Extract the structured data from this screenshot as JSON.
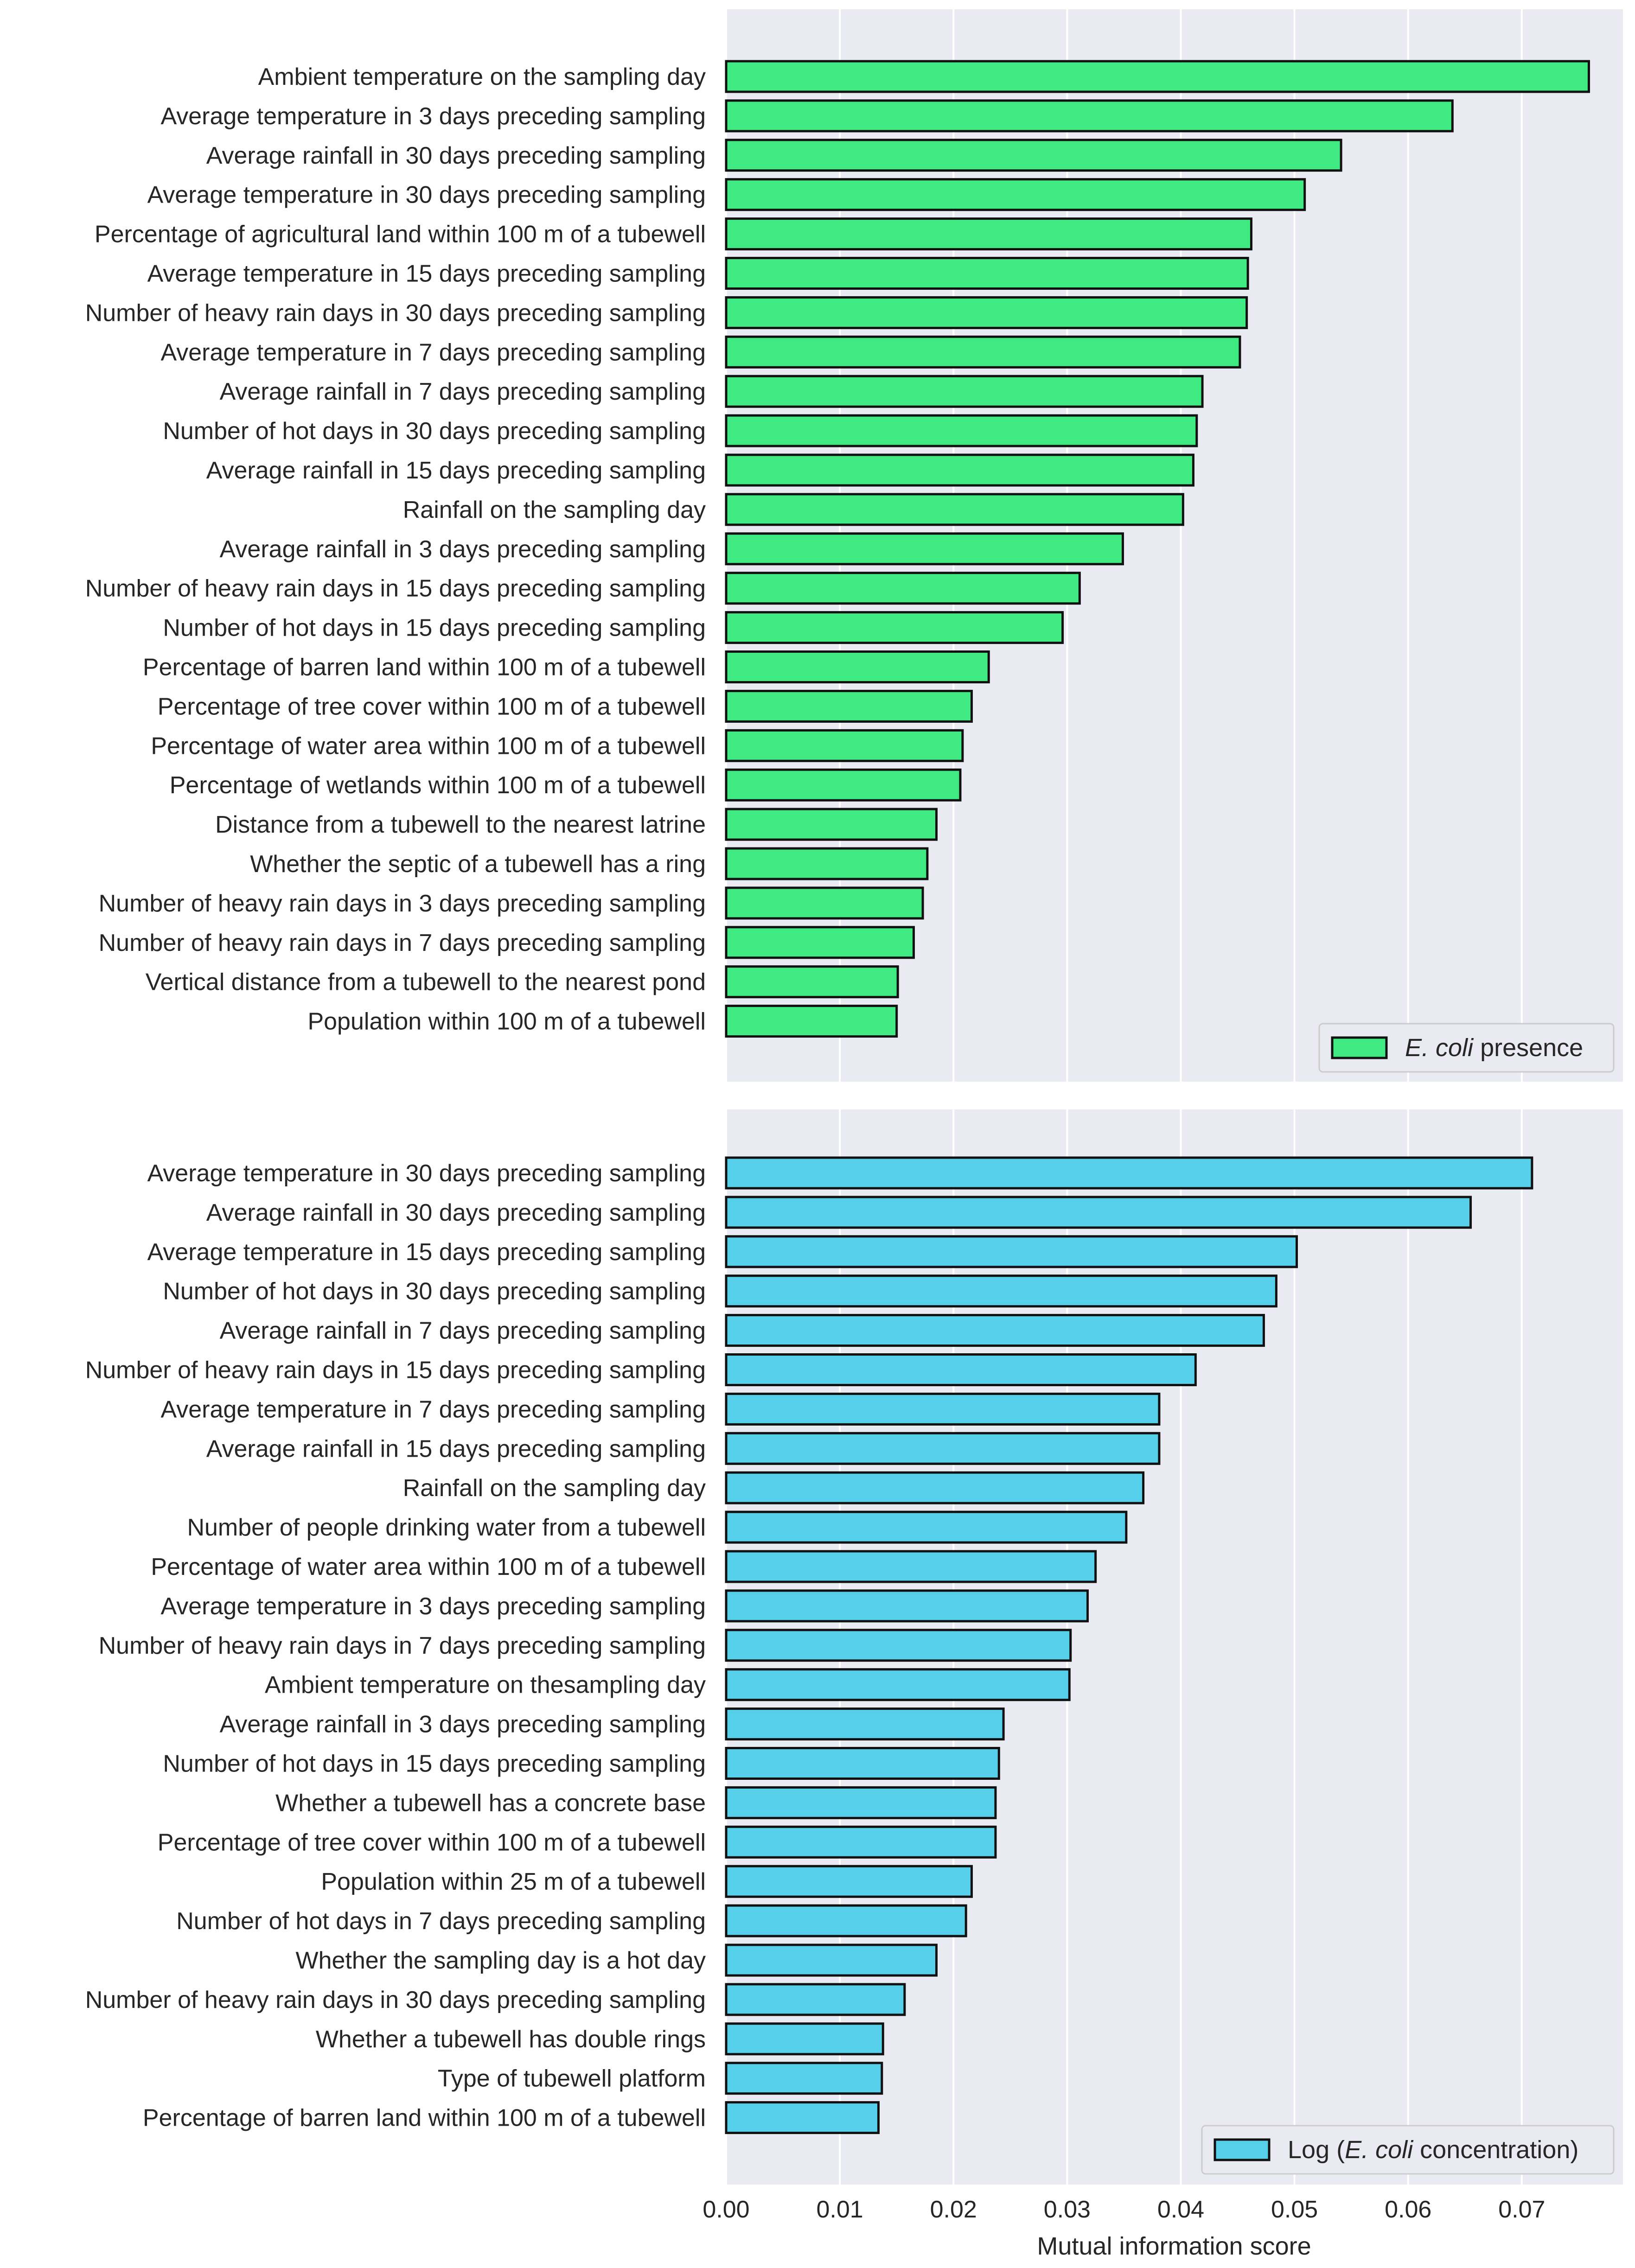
{
  "chart_data": [
    {
      "type": "bar",
      "orientation": "horizontal",
      "legend": {
        "prefix": "",
        "italic": "E. coli",
        "suffix": " presence",
        "position": "bottom-right"
      },
      "bar_color": "#3fea83",
      "categories": [
        "Ambient temperature on the sampling day",
        "Average temperature in 3 days preceding sampling",
        "Average rainfall in 30 days preceding sampling",
        "Average temperature in 30 days preceding sampling",
        "Percentage of agricultural land within 100 m of a tubewell",
        "Average temperature in 15 days preceding sampling",
        "Number of heavy rain days in 30 days preceding sampling",
        "Average temperature in 7 days preceding sampling",
        "Average rainfall in 7 days preceding sampling",
        "Number of hot days in 30 days preceding sampling",
        "Average rainfall in 15 days preceding sampling",
        "Rainfall on the sampling day",
        "Average rainfall in 3 days preceding sampling",
        "Number of heavy rain days in 15 days preceding sampling",
        "Number of hot days in 15 days preceding sampling",
        "Percentage of barren land within 100 m of a tubewell",
        "Percentage of tree cover within 100 m of a tubewell",
        "Percentage of water area within 100 m of a tubewell",
        "Percentage of wetlands within 100 m of a tubewell",
        "Distance from a tubewell to the nearest latrine",
        "Whether the septic of a tubewell has a ring",
        "Number of heavy rain days in 3 days preceding sampling",
        "Number of heavy rain days in 7 days preceding sampling",
        "Vertical distance from a tubewell to the nearest pond",
        "Population within 100 m of a tubewell"
      ],
      "values": [
        0.0759,
        0.0639,
        0.0541,
        0.0509,
        0.0462,
        0.0459,
        0.0458,
        0.0452,
        0.0419,
        0.0414,
        0.0411,
        0.0402,
        0.0349,
        0.0311,
        0.0296,
        0.0231,
        0.0216,
        0.0208,
        0.0206,
        0.0185,
        0.0177,
        0.0173,
        0.0165,
        0.0151,
        0.015
      ]
    },
    {
      "type": "bar",
      "orientation": "horizontal",
      "legend": {
        "prefix": "Log (",
        "italic": "E. coli",
        "suffix": " concentration)",
        "position": "bottom-right"
      },
      "bar_color": "#56cfeb",
      "categories": [
        "Average temperature in 30 days preceding sampling",
        "Average rainfall in 30 days preceding sampling",
        "Average temperature in 15 days preceding sampling",
        "Number of hot days in 30 days preceding sampling",
        "Average rainfall in 7 days preceding sampling",
        "Number of heavy rain days in 15 days preceding sampling",
        "Average temperature in 7 days preceding sampling",
        "Average rainfall in 15 days preceding sampling",
        "Rainfall on the sampling day",
        "Number of people drinking water from a tubewell",
        "Percentage of water area within 100 m of a tubewell",
        "Average temperature in 3 days preceding sampling",
        "Number of heavy rain days in 7 days preceding sampling",
        "Ambient temperature on thesampling day",
        "Average rainfall in 3 days preceding sampling",
        "Number of hot days in 15 days preceding sampling",
        "Whether a tubewell has a concrete base",
        "Percentage of tree cover within 100 m of a tubewell",
        "Population within 25 m of a tubewell",
        "Number of hot days in 7 days preceding sampling",
        "Whether the sampling day is a hot day",
        "Number of heavy rain days in 30 days preceding sampling",
        "Whether a tubewell has double rings",
        "Type of tubewell platform",
        "Percentage of barren land within 100 m of a tubewell"
      ],
      "values": [
        0.0709,
        0.0655,
        0.0502,
        0.0484,
        0.0473,
        0.0413,
        0.0381,
        0.0381,
        0.0367,
        0.0352,
        0.0325,
        0.0318,
        0.0303,
        0.0302,
        0.0244,
        0.024,
        0.0237,
        0.0237,
        0.0216,
        0.0211,
        0.0185,
        0.0157,
        0.0138,
        0.0137,
        0.0134
      ]
    }
  ],
  "x_axis": {
    "ticks": [
      0.0,
      0.01,
      0.02,
      0.03,
      0.04,
      0.05,
      0.06,
      0.07
    ],
    "tick_labels": [
      "0.00",
      "0.01",
      "0.02",
      "0.03",
      "0.04",
      "0.05",
      "0.06",
      "0.07"
    ],
    "xlim": [
      0,
      0.0789
    ],
    "label": "Mutual information score"
  }
}
